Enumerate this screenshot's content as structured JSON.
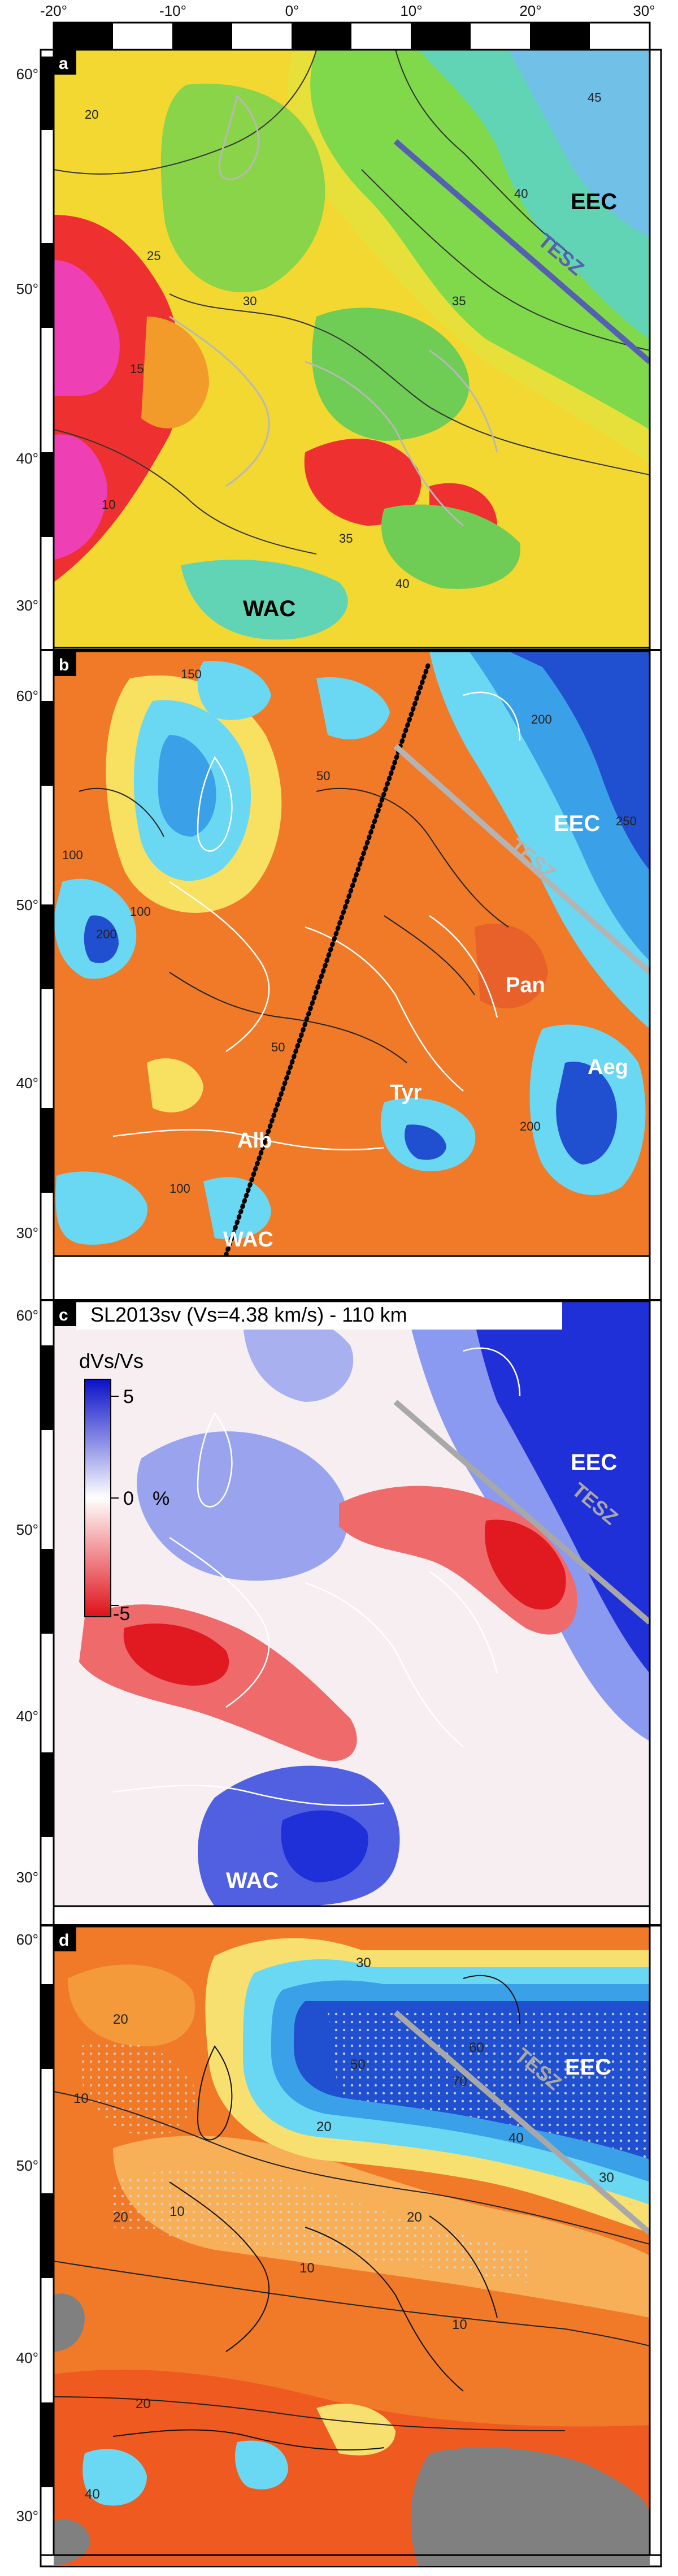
{
  "x_ticks": [
    "-20°",
    "-10°",
    "0°",
    "10°",
    "20°",
    "30°"
  ],
  "y_ticks": [
    "60°",
    "50°",
    "40°",
    "30°"
  ],
  "panels": [
    {
      "letter": "a",
      "labels": {
        "eec": "EEC",
        "tesz": "TESZ",
        "wac": "WAC"
      },
      "contour_values": [
        "20",
        "25",
        "30",
        "35",
        "40",
        "45",
        "15",
        "10"
      ]
    },
    {
      "letter": "b",
      "labels": {
        "eec": "EEC",
        "tesz": "TESZ",
        "wac": "WAC",
        "pan": "Pan",
        "aeg": "Aeg",
        "tyr": "Tyr",
        "alb": "Alb"
      },
      "contour_values": [
        "50",
        "100",
        "150",
        "200",
        "250"
      ]
    },
    {
      "letter": "c",
      "title": "SL2013sv (Vs=4.38 km/s) - 110 km",
      "colorbar": {
        "label": "dVs/Vs",
        "max": "5",
        "zero": "0",
        "unit": "%",
        "min": "-5",
        "colors": [
          "#0a10c8",
          "#ffffff",
          "#e0101a"
        ]
      },
      "labels": {
        "eec": "EEC",
        "tesz": "TESZ",
        "wac": "WAC"
      }
    },
    {
      "letter": "d",
      "labels": {
        "eec": "EEC",
        "tesz": "TESZ"
      },
      "contour_values": [
        "10",
        "20",
        "30",
        "40",
        "50",
        "60",
        "70"
      ]
    }
  ]
}
